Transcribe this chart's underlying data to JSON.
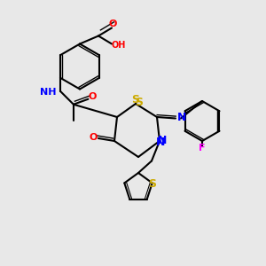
{
  "background_color": "#e8e8e8",
  "fig_width": 3.0,
  "fig_height": 3.0,
  "dpi": 100,
  "atom_colors": {
    "C": "#000000",
    "N": "#0000ff",
    "O": "#ff0000",
    "S": "#ccaa00",
    "F": "#ff00ff",
    "H": "#000000"
  },
  "bond_color": "#000000",
  "bond_width": 1.5,
  "font_size": 7
}
